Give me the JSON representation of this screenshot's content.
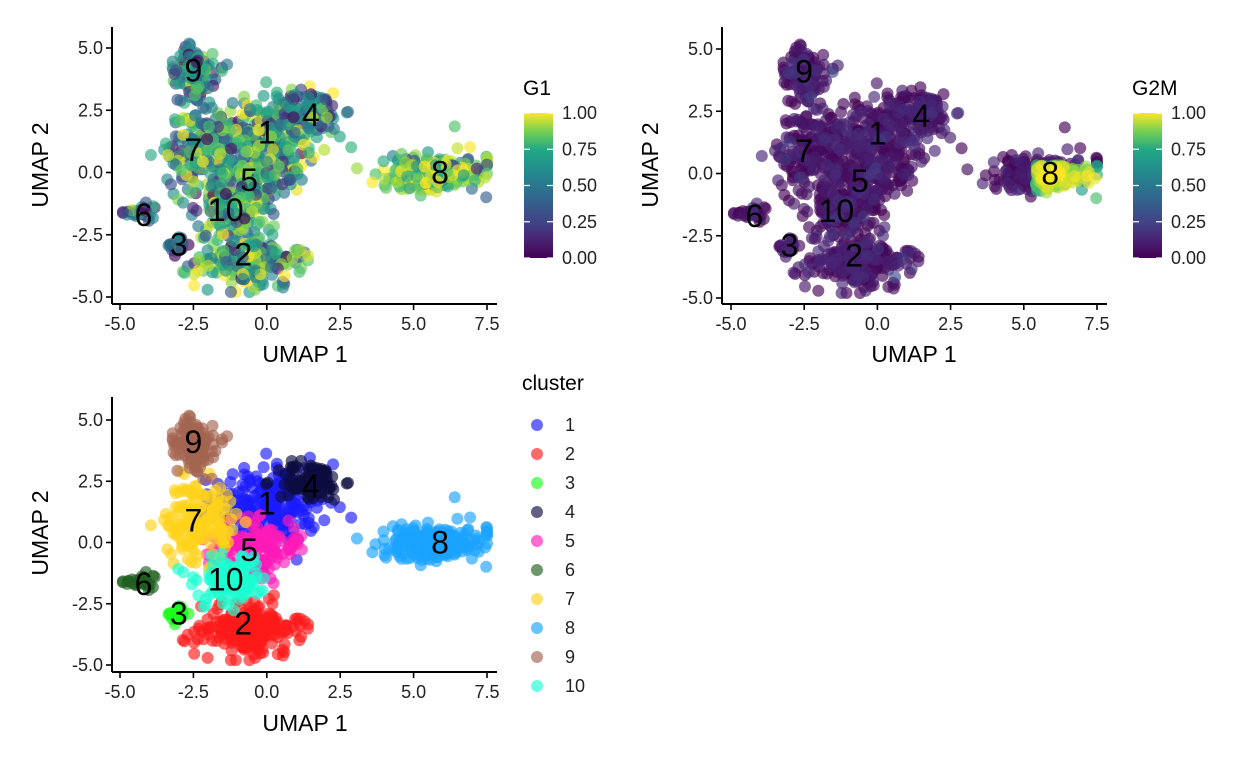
{
  "chart_data": [
    {
      "type": "scatter",
      "panel": "G1",
      "xlabel": "UMAP 1",
      "ylabel": "UMAP 2",
      "xlim": [
        -5.3,
        8.2
      ],
      "ylim": [
        -5.3,
        5.9
      ],
      "xticks": [
        "-5.0",
        "-2.5",
        "0.0",
        "2.5",
        "5.0",
        "7.5"
      ],
      "yticks": [
        "-5.0",
        "-2.5",
        "0.0",
        "2.5",
        "5.0"
      ],
      "color_scale": {
        "title": "G1",
        "palette": "viridis",
        "ticks": [
          "0.00",
          "0.25",
          "0.50",
          "0.75",
          "1.00"
        ],
        "range": [
          0,
          1
        ]
      },
      "clusters": [
        {
          "label": "1",
          "x": 0.0,
          "y": 1.6
        },
        {
          "label": "2",
          "x": -0.8,
          "y": -3.3
        },
        {
          "label": "3",
          "x": -3.0,
          "y": -2.9
        },
        {
          "label": "4",
          "x": 1.5,
          "y": 2.3
        },
        {
          "label": "5",
          "x": -0.6,
          "y": -0.3
        },
        {
          "label": "6",
          "x": -4.2,
          "y": -1.7
        },
        {
          "label": "7",
          "x": -2.5,
          "y": 0.9
        },
        {
          "label": "8",
          "x": 5.9,
          "y": 0.0
        },
        {
          "label": "9",
          "x": -2.5,
          "y": 4.1
        },
        {
          "label": "10",
          "x": -1.4,
          "y": -1.5
        }
      ]
    },
    {
      "type": "scatter",
      "panel": "G2M",
      "xlabel": "UMAP 1",
      "ylabel": "UMAP 2",
      "xlim": [
        -5.3,
        8.2
      ],
      "ylim": [
        -5.3,
        5.9
      ],
      "xticks": [
        "-5.0",
        "-2.5",
        "0.0",
        "2.5",
        "5.0",
        "7.5"
      ],
      "yticks": [
        "-5.0",
        "-2.5",
        "0.0",
        "2.5",
        "5.0"
      ],
      "color_scale": {
        "title": "G2M",
        "palette": "viridis",
        "ticks": [
          "0.00",
          "0.25",
          "0.50",
          "0.75",
          "1.00"
        ],
        "range": [
          0,
          1
        ]
      },
      "clusters": [
        {
          "label": "1",
          "x": 0.0,
          "y": 1.6
        },
        {
          "label": "2",
          "x": -0.8,
          "y": -3.3
        },
        {
          "label": "3",
          "x": -3.0,
          "y": -2.9
        },
        {
          "label": "4",
          "x": 1.5,
          "y": 2.3
        },
        {
          "label": "5",
          "x": -0.6,
          "y": -0.3
        },
        {
          "label": "6",
          "x": -4.2,
          "y": -1.7
        },
        {
          "label": "7",
          "x": -2.5,
          "y": 0.9
        },
        {
          "label": "8",
          "x": 5.9,
          "y": 0.0
        },
        {
          "label": "9",
          "x": -2.5,
          "y": 4.1
        },
        {
          "label": "10",
          "x": -1.4,
          "y": -1.5
        }
      ]
    },
    {
      "type": "scatter",
      "panel": "cluster",
      "xlabel": "UMAP 1",
      "ylabel": "UMAP 2",
      "xlim": [
        -5.3,
        8.2
      ],
      "ylim": [
        -5.3,
        5.9
      ],
      "xticks": [
        "-5.0",
        "-2.5",
        "0.0",
        "2.5",
        "5.0",
        "7.5"
      ],
      "yticks": [
        "-5.0",
        "-2.5",
        "0.0",
        "2.5",
        "5.0"
      ],
      "legend": {
        "title": "cluster",
        "items": [
          {
            "label": "1",
            "color": "#1a1aff"
          },
          {
            "label": "2",
            "color": "#ff1a1a"
          },
          {
            "label": "3",
            "color": "#1aff1a"
          },
          {
            "label": "4",
            "color": "#0d0d40"
          },
          {
            "label": "5",
            "color": "#ff1ab8"
          },
          {
            "label": "6",
            "color": "#1f5f1f"
          },
          {
            "label": "7",
            "color": "#ffd21a"
          },
          {
            "label": "8",
            "color": "#1aa3ff"
          },
          {
            "label": "9",
            "color": "#a36450"
          },
          {
            "label": "10",
            "color": "#1affd2"
          }
        ]
      },
      "clusters": [
        {
          "label": "1",
          "x": 0.0,
          "y": 1.6
        },
        {
          "label": "2",
          "x": -0.8,
          "y": -3.3
        },
        {
          "label": "3",
          "x": -3.0,
          "y": -2.9
        },
        {
          "label": "4",
          "x": 1.5,
          "y": 2.3
        },
        {
          "label": "5",
          "x": -0.6,
          "y": -0.3
        },
        {
          "label": "6",
          "x": -4.2,
          "y": -1.7
        },
        {
          "label": "7",
          "x": -2.5,
          "y": 0.9
        },
        {
          "label": "8",
          "x": 5.9,
          "y": 0.0
        },
        {
          "label": "9",
          "x": -2.5,
          "y": 4.1
        },
        {
          "label": "10",
          "x": -1.4,
          "y": -1.5
        }
      ]
    }
  ]
}
